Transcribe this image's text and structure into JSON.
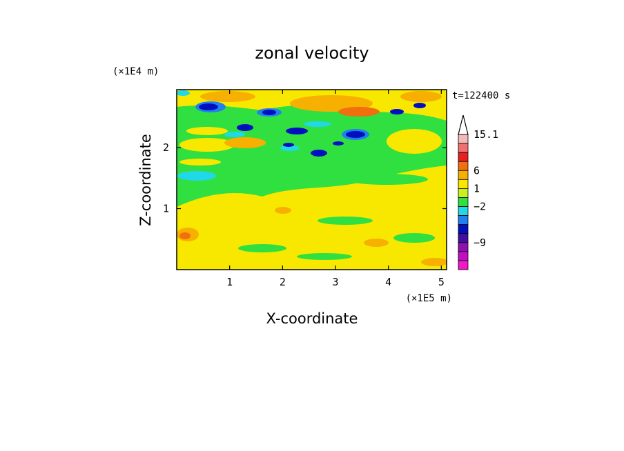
{
  "chart_data": {
    "type": "heatmap",
    "title": "zonal velocity",
    "xlabel": "X-coordinate",
    "ylabel": "Z-coordinate",
    "x_unit": "(×1E5 m)",
    "y_unit": "(×1E4 m)",
    "time_label": "t=122400 s",
    "x_ticks": [
      {
        "value": 1,
        "label": "1"
      },
      {
        "value": 2,
        "label": "2"
      },
      {
        "value": 3,
        "label": "3"
      },
      {
        "value": 4,
        "label": "4"
      },
      {
        "value": 5,
        "label": "5"
      }
    ],
    "y_ticks": [
      {
        "value": 1,
        "label": "1"
      },
      {
        "value": 2,
        "label": "2"
      }
    ],
    "xlim": [
      0,
      5.1
    ],
    "ylim": [
      0,
      2.95
    ],
    "colorbar": {
      "levels": [
        {
          "color": "#f5b8b8"
        },
        {
          "color": "#f07070"
        },
        {
          "color": "#e82020"
        },
        {
          "color": "#f07010"
        },
        {
          "color": "#f8b000"
        },
        {
          "color": "#f8e800"
        },
        {
          "color": "#c8f020"
        },
        {
          "color": "#30e040"
        },
        {
          "color": "#20d8e8"
        },
        {
          "color": "#2080f0"
        },
        {
          "color": "#0010c0"
        },
        {
          "color": "#4010a0"
        },
        {
          "color": "#9010b0"
        },
        {
          "color": "#c010c0"
        },
        {
          "color": "#f018c8"
        }
      ],
      "labels": [
        {
          "value": 15.1,
          "text": "15.1"
        },
        {
          "value": 6,
          "text": "6"
        },
        {
          "value": 1,
          "text": "1"
        },
        {
          "value": -2,
          "text": "−2"
        },
        {
          "value": -9,
          "text": "−9"
        }
      ]
    }
  }
}
